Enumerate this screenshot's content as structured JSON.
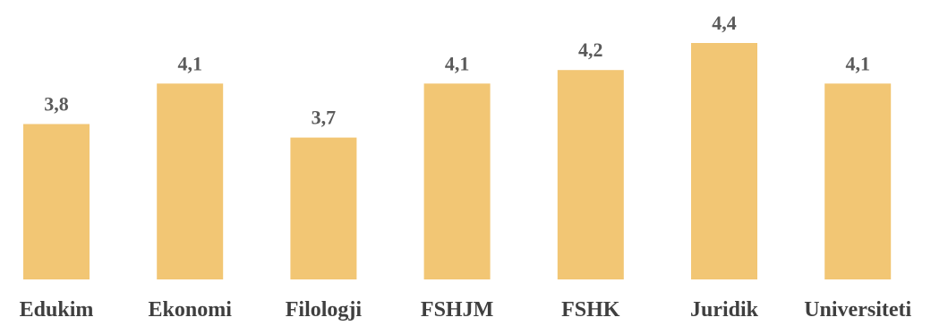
{
  "colors": {
    "bar": "#F2C674",
    "label": "#5a5a5a",
    "category": "#3f3f3f",
    "background": "#ffffff"
  },
  "chart_data": {
    "type": "bar",
    "categories": [
      "Edukim",
      "Ekonomi",
      "Filologji",
      "FSHJM",
      "FSHK",
      "Juridik",
      "Universiteti"
    ],
    "values": [
      3.8,
      4.1,
      3.7,
      4.1,
      4.2,
      4.4,
      4.1
    ],
    "data_labels": [
      "3,8",
      "4,1",
      "3,7",
      "4,1",
      "4,2",
      "4,4",
      "4,1"
    ],
    "ylim": [
      2.65,
      4.4
    ],
    "grid": false,
    "legend": "none"
  }
}
